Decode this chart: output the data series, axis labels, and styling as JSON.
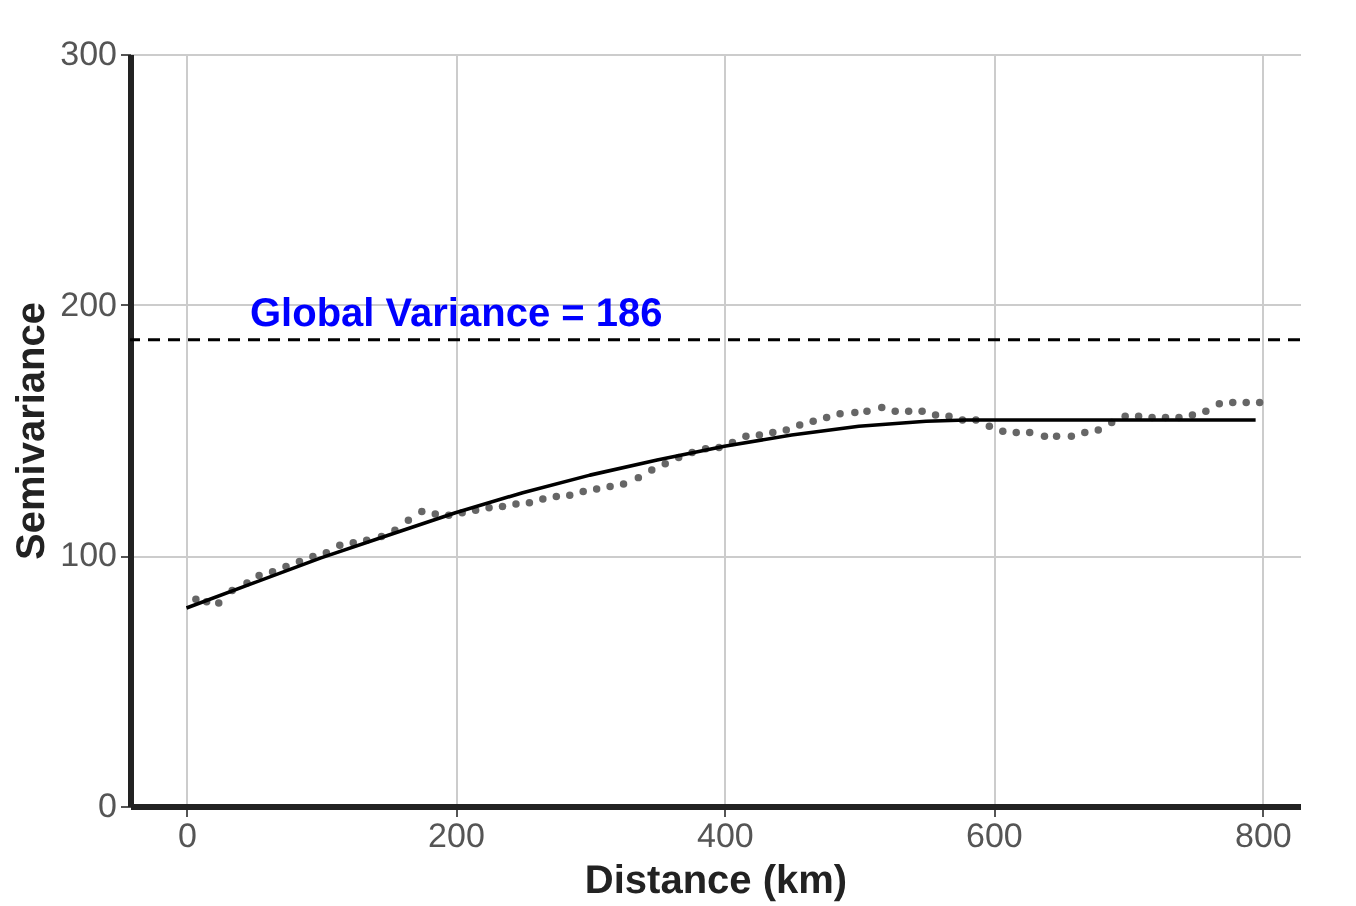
{
  "chart_data": {
    "type": "scatter",
    "xlabel": "Distance (km)",
    "ylabel": "Semivariance",
    "xlim": [
      -42,
      828
    ],
    "xticks": [
      0,
      200,
      400,
      600,
      800
    ],
    "ylim": [
      0,
      300
    ],
    "yticks": [
      0,
      100,
      200,
      300
    ],
    "grid": true,
    "series": [
      {
        "color": "#666666",
        "marker": "circle",
        "x": [
          7,
          15,
          24,
          34,
          45,
          54,
          64,
          74,
          84,
          94,
          104,
          114,
          124,
          134,
          145,
          155,
          165,
          175,
          185,
          195,
          205,
          215,
          225,
          235,
          245,
          255,
          265,
          275,
          285,
          295,
          305,
          315,
          325,
          336,
          346,
          356,
          366,
          376,
          386,
          396,
          406,
          416,
          426,
          436,
          446,
          456,
          466,
          476,
          486,
          497,
          506,
          517,
          527,
          537,
          547,
          557,
          567,
          577,
          587,
          597,
          607,
          617,
          627,
          638,
          647,
          658,
          668,
          678,
          688,
          698,
          708,
          718,
          728,
          738,
          748,
          758,
          768,
          778,
          788,
          798
        ],
        "values": [
          82.5,
          81.5,
          81,
          86,
          89,
          92,
          93.5,
          95.5,
          97.5,
          99.5,
          101,
          104,
          105,
          106,
          107.5,
          110,
          114,
          117.5,
          116.5,
          116,
          117,
          118,
          119,
          119.5,
          120.5,
          121,
          122.5,
          123.5,
          124,
          125.5,
          126.5,
          127.5,
          128.5,
          131,
          134,
          136.5,
          139,
          141,
          142.5,
          143,
          145,
          147.5,
          148,
          149,
          150,
          152,
          153.5,
          155,
          156.5,
          157,
          157.5,
          159,
          157.5,
          157.5,
          157.5,
          156,
          155.5,
          154,
          154,
          151.5,
          149.5,
          149,
          149,
          147.5,
          147.5,
          147.5,
          149,
          150,
          153,
          155.5,
          155.5,
          155,
          155,
          155,
          156,
          157.5,
          160.5,
          161,
          161,
          161
        ]
      },
      {
        "type": "line",
        "color": "#000000",
        "line_style": "solid",
        "marker": "none",
        "x": [
          0,
          50,
          100,
          150,
          200,
          250,
          300,
          350,
          400,
          450,
          500,
          550,
          580,
          795
        ],
        "values": [
          79,
          89,
          99,
          108,
          117,
          125,
          132,
          138,
          143.5,
          148,
          151.5,
          153.5,
          154,
          154
        ]
      }
    ],
    "ref_lines": [
      {
        "axis": "y",
        "value": 186,
        "label": "Global Variance = 186",
        "color": "#000000",
        "line_style": "dashed"
      }
    ]
  }
}
